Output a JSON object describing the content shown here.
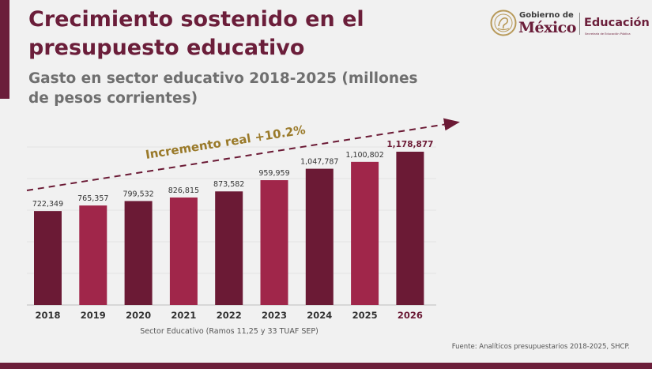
{
  "slide": {
    "title": "Crecimiento sostenido en el presupuesto educativo",
    "subtitle": "Gasto en sector educativo 2018-2025 (millones de pesos corrientes)",
    "caption": "Sector Educativo (Ramos 11,25 y 33 TUAF SEP)",
    "source": "Fuente: Analíticos presupuestarios 2018-2025, SHCP."
  },
  "logo": {
    "gobierno_de": "Gobierno de",
    "mexico": "México",
    "educacion": "Educación",
    "secretaria": "Secretaría de Educación Pública"
  },
  "colors": {
    "dark": "#6b1a35",
    "light": "#a0264a",
    "annotation": "#9a7a2a",
    "brand": "#6b1e3a"
  },
  "chart_data": {
    "type": "bar",
    "title": "Gasto en sector educativo 2018-2025",
    "xlabel": "Sector Educativo (Ramos 11,25 y 33 TUAF SEP)",
    "ylabel": "",
    "categories": [
      "2018",
      "2019",
      "2020",
      "2021",
      "2022",
      "2023",
      "2024",
      "2025",
      "2026"
    ],
    "values": [
      722349,
      765357,
      799532,
      826815,
      873582,
      959959,
      1047787,
      1100802,
      1178877
    ],
    "value_labels": [
      "722,349",
      "765,357",
      "799,532",
      "826,815",
      "873,582",
      "959,959",
      "1,047,787",
      "1,100,802",
      "1,178,877"
    ],
    "bar_shades": [
      "dark",
      "light",
      "dark",
      "light",
      "dark",
      "light",
      "dark",
      "light",
      "dark"
    ],
    "highlight_category": "2026",
    "ylim": [
      0,
      1300000
    ],
    "grid": true,
    "annotation": "Incremento real +10.2%"
  }
}
